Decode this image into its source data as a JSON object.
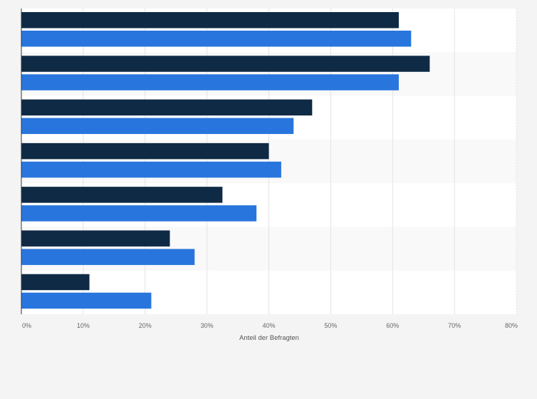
{
  "chart_data": {
    "type": "bar",
    "orientation": "horizontal",
    "categories": [
      "",
      "",
      "",
      "",
      "",
      "",
      ""
    ],
    "series": [
      {
        "values": [
          61,
          66,
          47,
          40,
          32.5,
          24,
          11
        ],
        "color": "#0f2a44"
      },
      {
        "values": [
          63,
          61,
          44,
          42,
          38,
          28,
          21
        ],
        "color": "#2876dd"
      }
    ],
    "xlim": [
      0,
      80
    ],
    "xticks": [
      "0%",
      "10%",
      "20%",
      "30%",
      "40%",
      "50%",
      "60%",
      "70%",
      "80%"
    ],
    "xlabel": "Anteil der Befragten",
    "ylabel": "",
    "title": "",
    "grid": true
  }
}
